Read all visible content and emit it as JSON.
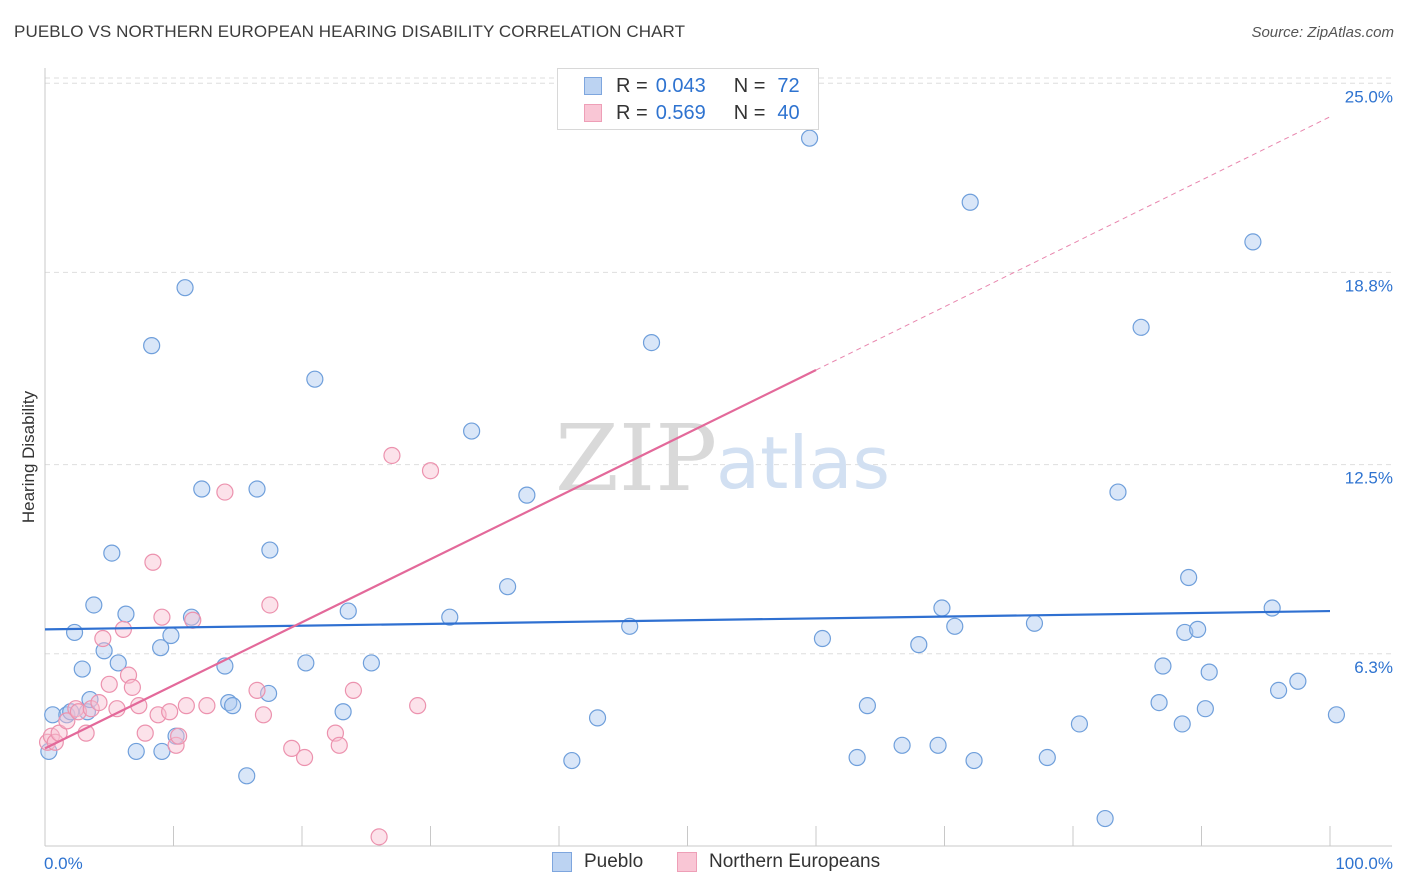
{
  "title": "PUEBLO VS NORTHERN EUROPEAN HEARING DISABILITY CORRELATION CHART",
  "source": "Source: ZipAtlas.com",
  "watermark": {
    "zip": "ZIP",
    "atlas": "atlas"
  },
  "legend": {
    "rows": [
      {
        "r_label": "R =",
        "r_value": "0.043",
        "n_label": "N =",
        "n_value": "72",
        "fill": "#bcd3f2",
        "stroke": "#7ea6de"
      },
      {
        "r_label": "R =",
        "r_value": "0.569",
        "n_label": "N =",
        "n_value": "40",
        "fill": "#f9c6d5",
        "stroke": "#ee9fb7"
      }
    ]
  },
  "bottom_legend": [
    {
      "label": "Pueblo",
      "fill": "#bcd3f2",
      "stroke": "#7ea6de"
    },
    {
      "label": "Northern Europeans",
      "fill": "#f9c6d5",
      "stroke": "#ee9fb7"
    }
  ],
  "colors": {
    "pueblo_point_fill": "rgba(170,200,240,0.45)",
    "pueblo_point_stroke": "#6f9fdb",
    "pueblo_line": "#2f70d1",
    "ne_point_fill": "rgba(248,190,208,0.45)",
    "ne_point_stroke": "#ec92ae",
    "ne_line": "#e3699a",
    "axis_label": "#2e73d0",
    "grid": "#dedede"
  },
  "chart_data": {
    "type": "scatter",
    "title": "PUEBLO VS NORTHERN EUROPEAN HEARING DISABILITY CORRELATION CHART",
    "xlabel": "",
    "ylabel": "Hearing Disability",
    "xlim": [
      0,
      100
    ],
    "ylim": [
      0,
      25.5
    ],
    "x_tick_labels": [
      "0.0%",
      "100.0%"
    ],
    "y_ticks": [
      6.3,
      12.5,
      18.8,
      25.0
    ],
    "y_tick_labels": [
      "6.3%",
      "12.5%",
      "18.8%",
      "25.0%"
    ],
    "grid": true,
    "legend_position": "top-center",
    "series": [
      {
        "name": "Pueblo",
        "R": 0.043,
        "N": 72,
        "trend": {
          "x": [
            0,
            100
          ],
          "y": [
            7.1,
            7.7
          ]
        },
        "points": [
          [
            0.6,
            4.3
          ],
          [
            1.7,
            4.3
          ],
          [
            2.0,
            4.4
          ],
          [
            2.3,
            7.0
          ],
          [
            2.9,
            5.8
          ],
          [
            3.3,
            4.4
          ],
          [
            3.5,
            4.8
          ],
          [
            3.8,
            7.9
          ],
          [
            4.6,
            6.4
          ],
          [
            5.2,
            9.6
          ],
          [
            5.7,
            6.0
          ],
          [
            6.3,
            7.6
          ],
          [
            7.1,
            3.1
          ],
          [
            8.3,
            16.4
          ],
          [
            9.0,
            6.5
          ],
          [
            9.1,
            3.1
          ],
          [
            9.8,
            6.9
          ],
          [
            10.2,
            3.6
          ],
          [
            10.9,
            18.3
          ],
          [
            11.4,
            7.5
          ],
          [
            12.2,
            11.7
          ],
          [
            14.0,
            5.9
          ],
          [
            14.3,
            4.7
          ],
          [
            14.6,
            4.6
          ],
          [
            15.7,
            2.3
          ],
          [
            16.5,
            11.7
          ],
          [
            17.4,
            5.0
          ],
          [
            17.5,
            9.7
          ],
          [
            20.3,
            6.0
          ],
          [
            21.0,
            15.3
          ],
          [
            23.2,
            4.4
          ],
          [
            23.6,
            7.7
          ],
          [
            25.4,
            6.0
          ],
          [
            31.5,
            7.5
          ],
          [
            33.2,
            13.6
          ],
          [
            36.0,
            8.5
          ],
          [
            37.5,
            11.5
          ],
          [
            41.0,
            2.8
          ],
          [
            43.0,
            4.2
          ],
          [
            45.5,
            7.2
          ],
          [
            47.2,
            16.5
          ],
          [
            59.5,
            23.2
          ],
          [
            60.5,
            6.8
          ],
          [
            63.2,
            2.9
          ],
          [
            64.0,
            4.6
          ],
          [
            66.7,
            3.3
          ],
          [
            68.0,
            6.6
          ],
          [
            69.5,
            3.3
          ],
          [
            69.8,
            7.8
          ],
          [
            70.8,
            7.2
          ],
          [
            72.0,
            21.1
          ],
          [
            72.3,
            2.8
          ],
          [
            77.0,
            7.3
          ],
          [
            78.0,
            2.9
          ],
          [
            80.5,
            4.0
          ],
          [
            82.5,
            0.9
          ],
          [
            83.5,
            11.6
          ],
          [
            85.3,
            17.0
          ],
          [
            86.7,
            4.7
          ],
          [
            87.0,
            5.9
          ],
          [
            88.5,
            4.0
          ],
          [
            88.7,
            7.0
          ],
          [
            89.0,
            8.8
          ],
          [
            89.7,
            7.1
          ],
          [
            90.3,
            4.5
          ],
          [
            90.6,
            5.7
          ],
          [
            94.0,
            19.8
          ],
          [
            95.5,
            7.8
          ],
          [
            96.0,
            5.1
          ],
          [
            97.5,
            5.4
          ],
          [
            100.5,
            4.3
          ],
          [
            0.3,
            3.1
          ]
        ]
      },
      {
        "name": "Northern Europeans",
        "R": 0.569,
        "N": 40,
        "trend": {
          "x": [
            0,
            60
          ],
          "y": [
            3.2,
            15.6
          ]
        },
        "trend_extrapolated": {
          "x": [
            60,
            100
          ],
          "y": [
            15.6,
            23.9
          ]
        },
        "points": [
          [
            0.2,
            3.4
          ],
          [
            0.5,
            3.6
          ],
          [
            0.8,
            3.4
          ],
          [
            1.1,
            3.7
          ],
          [
            1.7,
            4.1
          ],
          [
            2.4,
            4.5
          ],
          [
            2.6,
            4.4
          ],
          [
            3.2,
            3.7
          ],
          [
            3.6,
            4.5
          ],
          [
            4.2,
            4.7
          ],
          [
            4.5,
            6.8
          ],
          [
            5.0,
            5.3
          ],
          [
            5.6,
            4.5
          ],
          [
            6.1,
            7.1
          ],
          [
            6.5,
            5.6
          ],
          [
            6.8,
            5.2
          ],
          [
            7.3,
            4.6
          ],
          [
            7.8,
            3.7
          ],
          [
            8.4,
            9.3
          ],
          [
            8.8,
            4.3
          ],
          [
            9.1,
            7.5
          ],
          [
            9.7,
            4.4
          ],
          [
            10.2,
            3.3
          ],
          [
            10.4,
            3.6
          ],
          [
            11.0,
            4.6
          ],
          [
            11.5,
            7.4
          ],
          [
            12.6,
            4.6
          ],
          [
            14.0,
            11.6
          ],
          [
            16.5,
            5.1
          ],
          [
            17.0,
            4.3
          ],
          [
            17.5,
            7.9
          ],
          [
            19.2,
            3.2
          ],
          [
            20.2,
            2.9
          ],
          [
            22.6,
            3.7
          ],
          [
            22.9,
            3.3
          ],
          [
            24.0,
            5.1
          ],
          [
            26.0,
            0.3
          ],
          [
            27.0,
            12.8
          ],
          [
            29.0,
            4.6
          ],
          [
            30.0,
            12.3
          ]
        ]
      }
    ]
  }
}
